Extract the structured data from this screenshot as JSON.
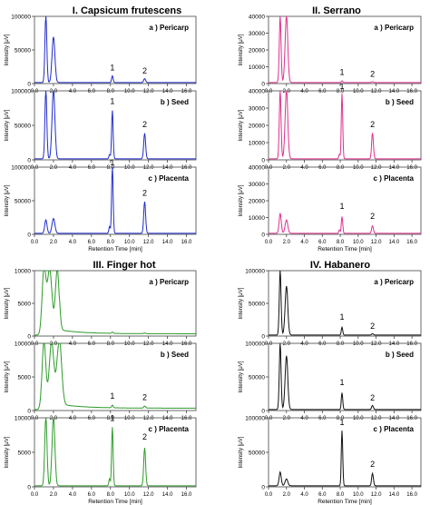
{
  "colors": {
    "blue": "#1f2bc8",
    "pink": "#e0308e",
    "green": "#2e9b2a",
    "black": "#111111",
    "banner_I": "#c5c8f2",
    "banner_II": "#f6cfe3",
    "banner_III": "#c9ebc9",
    "banner_IV": "#d6d6d6"
  },
  "chart_data": [
    {
      "type": "line",
      "panel": "I",
      "banner": "I. Capsicum frutescens",
      "color": "blue",
      "subplots": [
        {
          "label": "a ) Pericarp",
          "yticks": [
            "0",
            "50000",
            "100000"
          ],
          "ylim": [
            0,
            100000
          ],
          "show_xlabel": false,
          "peaks": [
            [
              1.2,
              100000,
              0.1
            ],
            [
              2.0,
              68000,
              0.15
            ],
            [
              8.2,
              10000,
              0.08
            ],
            [
              11.6,
              6000,
              0.1
            ]
          ],
          "peak_labels": [
            {
              "text": "1",
              "x": 8.2,
              "y": 17000
            },
            {
              "text": "2",
              "x": 11.6,
              "y": 12000
            }
          ]
        },
        {
          "label": "b ) Seed",
          "yticks": [
            "0",
            "50000",
            "100000"
          ],
          "ylim": [
            0,
            100000
          ],
          "show_xlabel": false,
          "peaks": [
            [
              1.2,
              100000,
              0.1
            ],
            [
              2.0,
              100000,
              0.15
            ],
            [
              7.9,
              6000,
              0.07
            ],
            [
              8.2,
              70000,
              0.08
            ],
            [
              11.6,
              37000,
              0.1
            ]
          ],
          "peak_labels": [
            {
              "text": "1",
              "x": 8.2,
              "y": 78000
            },
            {
              "text": "2",
              "x": 11.6,
              "y": 45000
            }
          ]
        },
        {
          "label": "c ) Placenta",
          "yticks": [
            "0",
            "50000",
            "100000"
          ],
          "ylim": [
            0,
            100000
          ],
          "show_xlabel": true,
          "peaks": [
            [
              1.2,
              20000,
              0.12
            ],
            [
              2.0,
              22000,
              0.15
            ],
            [
              7.9,
              10000,
              0.07
            ],
            [
              8.2,
              100000,
              0.08
            ],
            [
              11.6,
              47000,
              0.1
            ]
          ],
          "peak_labels": [
            {
              "text": "1",
              "x": 8.2,
              "y": 108000
            },
            {
              "text": "2",
              "x": 11.6,
              "y": 55000
            }
          ]
        }
      ]
    },
    {
      "type": "line",
      "panel": "II",
      "banner": "II. Serrano",
      "color": "pink",
      "subplots": [
        {
          "label": "a ) Pericarp",
          "yticks": [
            "0",
            "10000",
            "20000",
            "30000",
            "40000"
          ],
          "ylim": [
            0,
            40000
          ],
          "show_xlabel": false,
          "peaks": [
            [
              1.3,
              40000,
              0.1
            ],
            [
              2.0,
              40000,
              0.15
            ],
            [
              8.2,
              1000,
              0.08
            ],
            [
              11.6,
              500,
              0.1
            ]
          ],
          "peak_labels": [
            {
              "text": "1",
              "x": 8.2,
              "y": 4000
            },
            {
              "text": "2",
              "x": 11.6,
              "y": 3000
            }
          ]
        },
        {
          "label": "b ) Seed",
          "yticks": [
            "0",
            "10000",
            "20000",
            "30000",
            "40000"
          ],
          "ylim": [
            0,
            40000
          ],
          "show_xlabel": false,
          "peaks": [
            [
              1.3,
              40000,
              0.1
            ],
            [
              2.0,
              40000,
              0.15
            ],
            [
              7.9,
              2500,
              0.07
            ],
            [
              8.2,
              38000,
              0.08
            ],
            [
              11.6,
              15000,
              0.1
            ]
          ],
          "peak_labels": [
            {
              "text": "1",
              "x": 8.2,
              "y": 40500
            },
            {
              "text": "2",
              "x": 11.6,
              "y": 18000
            }
          ]
        },
        {
          "label": "c ) Placenta",
          "yticks": [
            "0",
            "10000",
            "20000",
            "30000",
            "40000"
          ],
          "ylim": [
            0,
            40000
          ],
          "show_xlabel": true,
          "peaks": [
            [
              1.3,
              12000,
              0.12
            ],
            [
              2.0,
              8000,
              0.15
            ],
            [
              7.9,
              2000,
              0.07
            ],
            [
              8.2,
              10000,
              0.08
            ],
            [
              11.6,
              4500,
              0.1
            ]
          ],
          "peak_labels": [
            {
              "text": "1",
              "x": 8.2,
              "y": 14000
            },
            {
              "text": "2",
              "x": 11.6,
              "y": 8000
            }
          ]
        }
      ]
    },
    {
      "type": "line",
      "panel": "III",
      "banner": "III. Finger hot",
      "color": "green",
      "subplots": [
        {
          "label": "a ) Pericarp",
          "yticks": [
            "0",
            "5000",
            "10000"
          ],
          "ylim": [
            0,
            10000
          ],
          "show_xlabel": false,
          "peaks": [
            [
              1.0,
              10000,
              0.2
            ],
            [
              1.6,
              10000,
              0.25
            ],
            [
              2.4,
              10000,
              0.2
            ],
            [
              8.2,
              200,
              0.08
            ],
            [
              11.6,
              100,
              0.1
            ]
          ],
          "peak_labels": []
        },
        {
          "label": "b ) Seed",
          "yticks": [
            "0",
            "5000",
            "10000"
          ],
          "ylim": [
            0,
            10000
          ],
          "show_xlabel": false,
          "peaks": [
            [
              1.0,
              10000,
              0.2
            ],
            [
              1.8,
              10000,
              0.25
            ],
            [
              2.6,
              10000,
              0.25
            ],
            [
              8.2,
              400,
              0.08
            ],
            [
              11.6,
              300,
              0.1
            ]
          ],
          "peak_labels": [
            {
              "text": "1",
              "x": 8.2,
              "y": 1500
            },
            {
              "text": "2",
              "x": 11.6,
              "y": 1300
            }
          ]
        },
        {
          "label": "c ) Placenta",
          "yticks": [
            "0",
            "5000",
            "10000"
          ],
          "ylim": [
            0,
            10000
          ],
          "show_xlabel": true,
          "peaks": [
            [
              1.2,
              10000,
              0.12
            ],
            [
              2.0,
              10000,
              0.15
            ],
            [
              7.9,
              1000,
              0.07
            ],
            [
              8.2,
              8500,
              0.08
            ],
            [
              11.6,
              5500,
              0.1
            ]
          ],
          "peak_labels": [
            {
              "text": "1",
              "x": 8.2,
              "y": 9300
            },
            {
              "text": "2",
              "x": 11.6,
              "y": 6600
            }
          ]
        }
      ]
    },
    {
      "type": "line",
      "panel": "IV",
      "banner": "IV. Habanero",
      "color": "black",
      "subplots": [
        {
          "label": "a ) Pericarp",
          "yticks": [
            "0",
            "50000",
            "100000"
          ],
          "ylim": [
            0,
            100000
          ],
          "show_xlabel": false,
          "peaks": [
            [
              1.3,
              100000,
              0.1
            ],
            [
              2.0,
              75000,
              0.15
            ],
            [
              8.2,
              12000,
              0.08
            ],
            [
              11.6,
              2000,
              0.1
            ]
          ],
          "peak_labels": [
            {
              "text": "1",
              "x": 8.2,
              "y": 22000
            },
            {
              "text": "2",
              "x": 11.6,
              "y": 8000
            }
          ]
        },
        {
          "label": "b ) Seed",
          "yticks": [
            "0",
            "50000",
            "100000"
          ],
          "ylim": [
            0,
            100000
          ],
          "show_xlabel": false,
          "peaks": [
            [
              1.3,
              100000,
              0.1
            ],
            [
              2.0,
              80000,
              0.15
            ],
            [
              8.2,
              25000,
              0.08
            ],
            [
              11.6,
              6000,
              0.1
            ]
          ],
          "peak_labels": [
            {
              "text": "1",
              "x": 8.2,
              "y": 35000
            },
            {
              "text": "2",
              "x": 11.6,
              "y": 12000
            }
          ]
        },
        {
          "label": "c ) Placenta",
          "yticks": [
            "0",
            "50000",
            "100000"
          ],
          "ylim": [
            0,
            100000
          ],
          "show_xlabel": true,
          "peaks": [
            [
              1.3,
              20000,
              0.12
            ],
            [
              2.0,
              10000,
              0.15
            ],
            [
              8.2,
              80000,
              0.08
            ],
            [
              11.6,
              18000,
              0.1
            ]
          ],
          "peak_labels": [
            {
              "text": "1",
              "x": 8.2,
              "y": 87000
            },
            {
              "text": "2",
              "x": 11.6,
              "y": 26000
            }
          ]
        }
      ]
    }
  ],
  "axes": {
    "xticks": [
      "0.0",
      "2.0",
      "4.0",
      "6.0",
      "8.0",
      "10.0",
      "12.0",
      "14.0",
      "16.0"
    ],
    "xlim": [
      0,
      17
    ],
    "xlabel": "Retention Time [min]",
    "ylabel": "Intensity [μV]"
  }
}
